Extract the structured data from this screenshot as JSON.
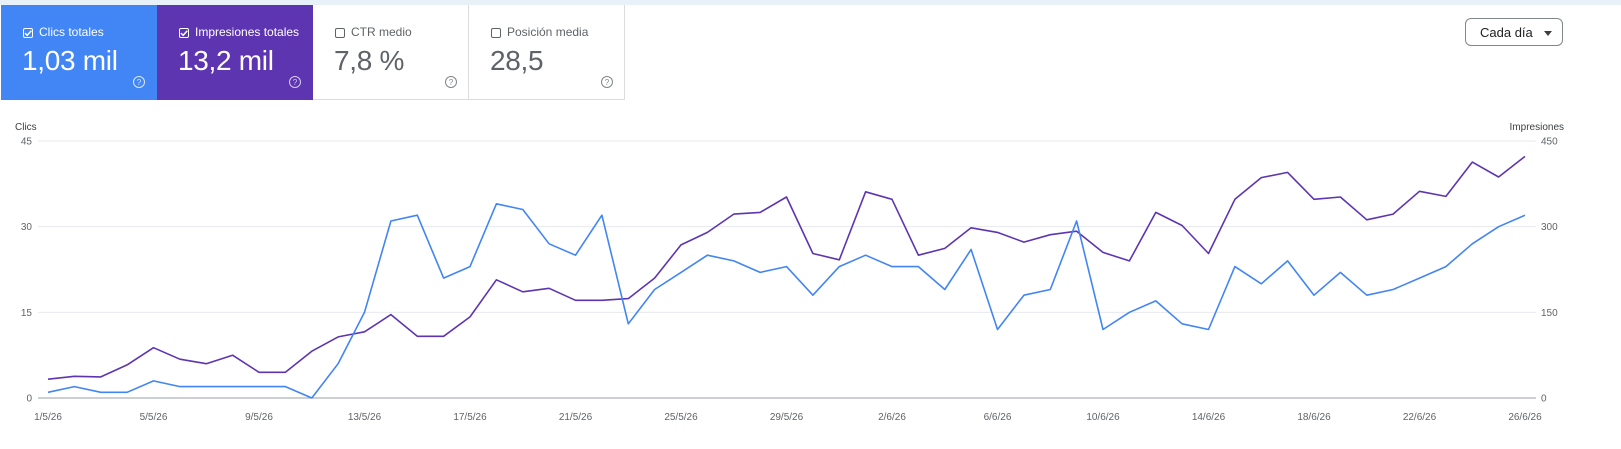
{
  "metrics": [
    {
      "label": "Clics totales",
      "value": "1,03 mil",
      "checked": true,
      "color": "#4285f4"
    },
    {
      "label": "Impresiones totales",
      "value": "13,2 mil",
      "checked": true,
      "color": "#5e35b1"
    },
    {
      "label": "CTR medio",
      "value": "7,8 %",
      "checked": false
    },
    {
      "label": "Posición media",
      "value": "28,5",
      "checked": false
    }
  ],
  "interval_select": {
    "value": "Cada día"
  },
  "chart_data": {
    "type": "line",
    "x": [
      "1/5/26",
      "2/5/26",
      "3/5/26",
      "4/5/26",
      "5/5/26",
      "6/5/26",
      "7/5/26",
      "8/5/26",
      "9/5/26",
      "10/5/26",
      "11/5/26",
      "12/5/26",
      "13/5/26",
      "14/5/26",
      "15/5/26",
      "16/5/26",
      "17/5/26",
      "18/5/26",
      "19/5/26",
      "20/5/26",
      "21/5/26",
      "22/5/26",
      "23/5/26",
      "24/5/26",
      "25/5/26",
      "26/5/26",
      "27/5/26",
      "28/5/26",
      "29/5/26",
      "30/5/26",
      "31/5/26",
      "1/6/26",
      "2/6/26",
      "3/6/26",
      "4/6/26",
      "5/6/26",
      "6/6/26",
      "7/6/26",
      "8/6/26",
      "9/6/26",
      "10/6/26",
      "11/6/26",
      "12/6/26",
      "13/6/26",
      "14/6/26",
      "15/6/26",
      "16/6/26",
      "17/6/26",
      "18/6/26",
      "19/6/26",
      "20/6/26",
      "21/6/26",
      "22/6/26",
      "23/6/26",
      "24/6/26",
      "25/6/26",
      "26/6/26"
    ],
    "x_tick_labels": [
      "1/5/26",
      "5/5/26",
      "9/5/26",
      "13/5/26",
      "17/5/26",
      "21/5/26",
      "25/5/26",
      "29/5/26",
      "2/6/26",
      "6/6/26",
      "10/6/26",
      "14/6/26",
      "18/6/26",
      "22/6/26",
      "26/6/26"
    ],
    "series": [
      {
        "name": "Clics",
        "axis": "left",
        "color": "#4285f4",
        "values": [
          1,
          2,
          1,
          1,
          3,
          2,
          2,
          2,
          2,
          2,
          0,
          6,
          15,
          31,
          32,
          21,
          23,
          34,
          33,
          27,
          25,
          32,
          13,
          19,
          22,
          25,
          24,
          22,
          23,
          18,
          23,
          25,
          23,
          23,
          19,
          26,
          12,
          18,
          19,
          31,
          12,
          15,
          17,
          13,
          12,
          23,
          20,
          24,
          18,
          22,
          18,
          19,
          21,
          23,
          27,
          30,
          32
        ]
      },
      {
        "name": "Impresiones",
        "axis": "right",
        "color": "#5e35b1",
        "values": [
          33,
          38,
          37,
          58,
          88,
          68,
          60,
          75,
          45,
          45,
          82,
          107,
          116,
          146,
          108,
          108,
          142,
          207,
          186,
          192,
          171,
          171,
          174,
          210,
          268,
          290,
          322,
          325,
          352,
          253,
          242,
          361,
          348,
          250,
          262,
          298,
          290,
          273,
          286,
          292,
          255,
          240,
          325,
          302,
          253,
          348,
          386,
          395,
          348,
          352,
          312,
          322,
          362,
          353,
          413,
          387,
          423
        ]
      }
    ],
    "y_left": {
      "label": "Clics",
      "ticks": [
        0,
        15,
        30,
        45
      ],
      "ylim": [
        0,
        45
      ]
    },
    "y_right": {
      "label": "Impresiones",
      "ticks": [
        0,
        150,
        300,
        450
      ],
      "ylim": [
        0,
        450
      ]
    },
    "grid": true
  }
}
